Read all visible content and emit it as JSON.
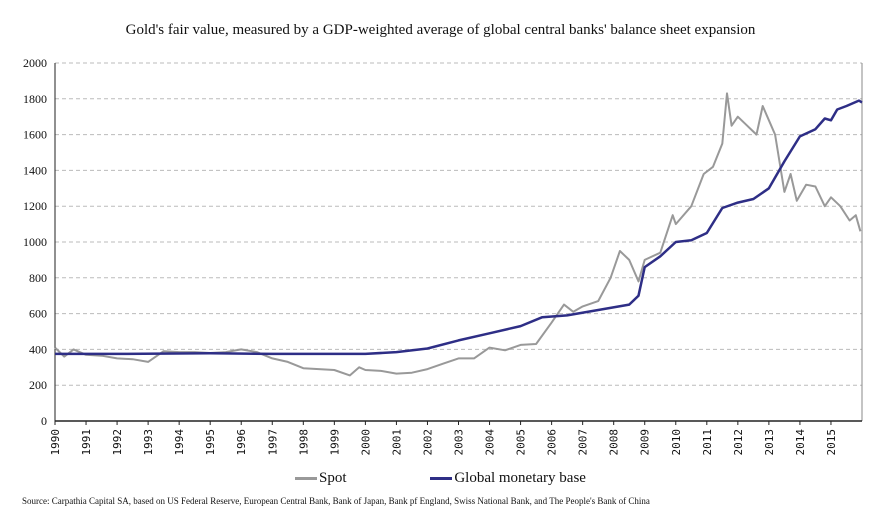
{
  "chart_data": {
    "type": "line",
    "title": "Gold's fair value, measured by a GDP-weighted average of global central banks' balance sheet expansion",
    "xlabel": "",
    "ylabel": "",
    "xlim": [
      1990,
      2016
    ],
    "ylim": [
      0,
      2000
    ],
    "yticks": [
      0,
      200,
      400,
      600,
      800,
      1000,
      1200,
      1400,
      1600,
      1800,
      2000
    ],
    "xticks": [
      1990,
      1991,
      1992,
      1993,
      1994,
      1995,
      1996,
      1997,
      1998,
      1999,
      2000,
      2001,
      2002,
      2003,
      2004,
      2005,
      2006,
      2007,
      2008,
      2009,
      2010,
      2011,
      2012,
      2013,
      2014,
      2015
    ],
    "grid": "horizontal dashed",
    "legend": "bottom",
    "series": [
      {
        "name": "Spot",
        "color": "#999999",
        "points": [
          [
            1990,
            410
          ],
          [
            1990.3,
            360
          ],
          [
            1990.6,
            400
          ],
          [
            1991,
            370
          ],
          [
            1991.5,
            365
          ],
          [
            1992,
            350
          ],
          [
            1992.5,
            345
          ],
          [
            1993,
            330
          ],
          [
            1993.5,
            390
          ],
          [
            1994,
            385
          ],
          [
            1994.5,
            385
          ],
          [
            1995,
            380
          ],
          [
            1995.5,
            385
          ],
          [
            1996,
            400
          ],
          [
            1996.5,
            385
          ],
          [
            1997,
            350
          ],
          [
            1997.5,
            330
          ],
          [
            1998,
            295
          ],
          [
            1998.5,
            290
          ],
          [
            1999,
            285
          ],
          [
            1999.5,
            255
          ],
          [
            1999.8,
            300
          ],
          [
            2000,
            285
          ],
          [
            2000.5,
            280
          ],
          [
            2001,
            265
          ],
          [
            2001.5,
            270
          ],
          [
            2002,
            290
          ],
          [
            2002.5,
            320
          ],
          [
            2003,
            350
          ],
          [
            2003.5,
            350
          ],
          [
            2004,
            410
          ],
          [
            2004.5,
            395
          ],
          [
            2005,
            425
          ],
          [
            2005.5,
            430
          ],
          [
            2006,
            550
          ],
          [
            2006.4,
            650
          ],
          [
            2006.7,
            610
          ],
          [
            2007,
            640
          ],
          [
            2007.5,
            670
          ],
          [
            2007.9,
            800
          ],
          [
            2008.2,
            950
          ],
          [
            2008.5,
            900
          ],
          [
            2008.8,
            780
          ],
          [
            2009,
            900
          ],
          [
            2009.5,
            940
          ],
          [
            2009.9,
            1150
          ],
          [
            2010,
            1100
          ],
          [
            2010.5,
            1200
          ],
          [
            2010.9,
            1380
          ],
          [
            2011.2,
            1420
          ],
          [
            2011.5,
            1550
          ],
          [
            2011.65,
            1830
          ],
          [
            2011.8,
            1650
          ],
          [
            2012,
            1700
          ],
          [
            2012.3,
            1650
          ],
          [
            2012.6,
            1600
          ],
          [
            2012.8,
            1760
          ],
          [
            2013,
            1680
          ],
          [
            2013.2,
            1600
          ],
          [
            2013.5,
            1280
          ],
          [
            2013.7,
            1380
          ],
          [
            2013.9,
            1230
          ],
          [
            2014.2,
            1320
          ],
          [
            2014.5,
            1310
          ],
          [
            2014.8,
            1200
          ],
          [
            2015,
            1250
          ],
          [
            2015.3,
            1200
          ],
          [
            2015.6,
            1120
          ],
          [
            2015.8,
            1150
          ],
          [
            2015.95,
            1060
          ]
        ]
      },
      {
        "name": "Global monetary base",
        "color": "#2e2e86",
        "points": [
          [
            1990,
            375
          ],
          [
            1992,
            375
          ],
          [
            1995,
            378
          ],
          [
            1997,
            375
          ],
          [
            1999,
            375
          ],
          [
            2000,
            375
          ],
          [
            2001,
            385
          ],
          [
            2002,
            405
          ],
          [
            2003,
            450
          ],
          [
            2004,
            490
          ],
          [
            2005,
            530
          ],
          [
            2005.7,
            580
          ],
          [
            2006.5,
            590
          ],
          [
            2007.5,
            620
          ],
          [
            2008.5,
            650
          ],
          [
            2008.8,
            700
          ],
          [
            2009,
            860
          ],
          [
            2009.5,
            920
          ],
          [
            2010,
            1000
          ],
          [
            2010.5,
            1010
          ],
          [
            2011,
            1050
          ],
          [
            2011.5,
            1190
          ],
          [
            2012,
            1220
          ],
          [
            2012.5,
            1240
          ],
          [
            2013,
            1300
          ],
          [
            2013.5,
            1450
          ],
          [
            2014,
            1590
          ],
          [
            2014.5,
            1630
          ],
          [
            2014.8,
            1690
          ],
          [
            2015,
            1680
          ],
          [
            2015.2,
            1740
          ],
          [
            2015.5,
            1760
          ],
          [
            2015.9,
            1790
          ],
          [
            2016,
            1780
          ]
        ]
      }
    ],
    "source": "Source: Carpathia Capital SA, based on US Federal Reserve, European Central Bank, Bank of Japan, Bank pf England, Swiss National Bank, and The People's Bank of China"
  }
}
